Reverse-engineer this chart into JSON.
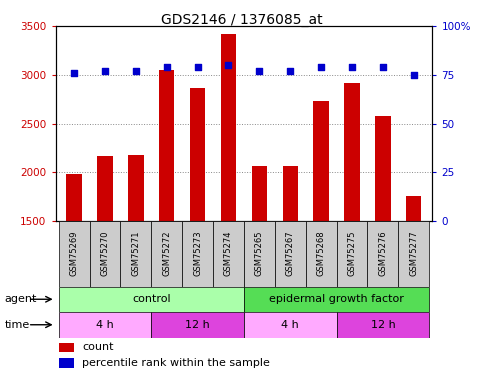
{
  "title": "GDS2146 / 1376085_at",
  "samples": [
    "GSM75269",
    "GSM75270",
    "GSM75271",
    "GSM75272",
    "GSM75273",
    "GSM75274",
    "GSM75265",
    "GSM75267",
    "GSM75268",
    "GSM75275",
    "GSM75276",
    "GSM75277"
  ],
  "counts": [
    1980,
    2170,
    2180,
    3050,
    2870,
    3420,
    2060,
    2060,
    2730,
    2920,
    2580,
    1760
  ],
  "percentiles": [
    76,
    77,
    77,
    79,
    79,
    80,
    77,
    77,
    79,
    79,
    79,
    75
  ],
  "ylim_left": [
    1500,
    3500
  ],
  "ylim_right": [
    0,
    100
  ],
  "yticks_left": [
    1500,
    2000,
    2500,
    3000,
    3500
  ],
  "yticks_right": [
    0,
    25,
    50,
    75,
    100
  ],
  "bar_color": "#cc0000",
  "dot_color": "#0000cc",
  "agent_groups": [
    {
      "label": "control",
      "start": 0,
      "end": 6,
      "color": "#aaffaa"
    },
    {
      "label": "epidermal growth factor",
      "start": 6,
      "end": 12,
      "color": "#55dd55"
    }
  ],
  "time_groups": [
    {
      "label": "4 h",
      "start": 0,
      "end": 3,
      "color": "#ffaaff"
    },
    {
      "label": "12 h",
      "start": 3,
      "end": 6,
      "color": "#dd44dd"
    },
    {
      "label": "4 h",
      "start": 6,
      "end": 9,
      "color": "#ffaaff"
    },
    {
      "label": "12 h",
      "start": 9,
      "end": 12,
      "color": "#dd44dd"
    }
  ],
  "bar_width": 0.5,
  "grid_color": "#888888",
  "plot_bg": "#ffffff",
  "label_bg": "#cccccc",
  "tick_fontsize": 7.5,
  "title_fontsize": 10,
  "sample_fontsize": 6,
  "row_fontsize": 8,
  "legend_fontsize": 8
}
